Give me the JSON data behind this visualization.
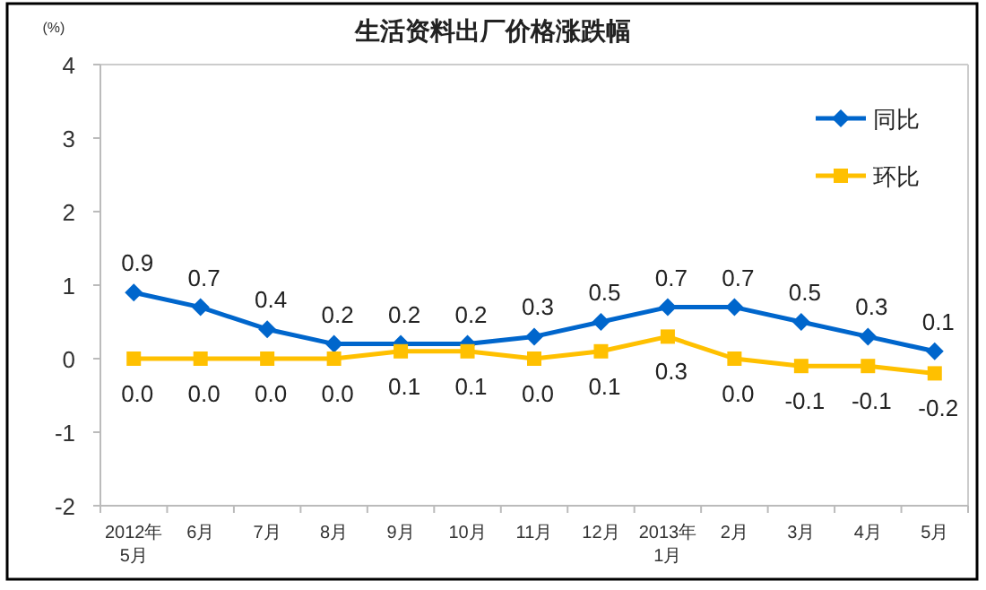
{
  "chart_data": {
    "type": "line",
    "title": "生活资料出厂价格涨跌幅",
    "ylabel": "(%)",
    "categories": [
      "2012年\n5月",
      "6月",
      "7月",
      "8月",
      "9月",
      "10月",
      "11月",
      "12月",
      "2013年\n1月",
      "2月",
      "3月",
      "4月",
      "5月"
    ],
    "series": [
      {
        "name": "同比",
        "color": "#0066cc",
        "marker": "diamond",
        "values": [
          0.9,
          0.7,
          0.4,
          0.2,
          0.2,
          0.2,
          0.3,
          0.5,
          0.7,
          0.7,
          0.5,
          0.3,
          0.1
        ],
        "value_labels": [
          "0.9",
          "0.7",
          "0.4",
          "0.2",
          "0.2",
          "0.2",
          "0.3",
          "0.5",
          "0.7",
          "0.7",
          "0.5",
          "0.3",
          "0.1"
        ]
      },
      {
        "name": "环比",
        "color": "#ffc000",
        "marker": "square",
        "values": [
          0,
          0,
          0,
          0,
          0.1,
          0.1,
          0,
          0.1,
          0.3,
          0,
          -0.1,
          -0.1,
          -0.2
        ],
        "value_labels": [
          "0.0",
          "0.0",
          "0.0",
          "0.0",
          "0.1",
          "0.1",
          "0.0",
          "0.1",
          "0.3",
          "0.0",
          "-0.1",
          "-0.1",
          "-0.2"
        ]
      }
    ],
    "ylim": [
      -2,
      4
    ],
    "yticks": [
      -2,
      -1,
      0,
      1,
      2,
      3,
      4
    ],
    "grid": false,
    "legend": "top right",
    "line_style": "solid"
  }
}
